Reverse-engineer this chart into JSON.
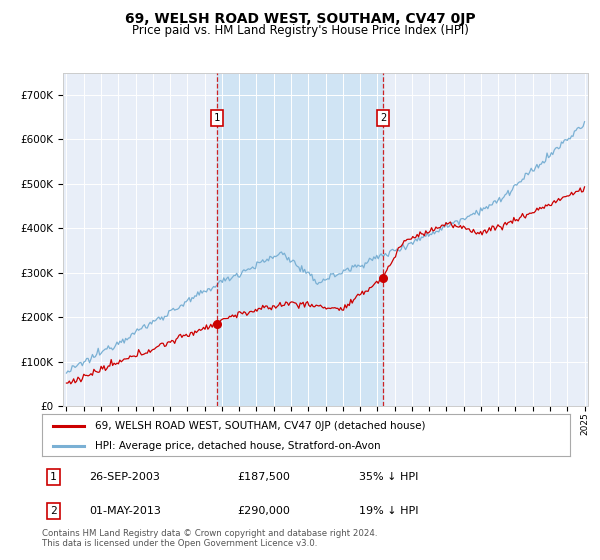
{
  "title": "69, WELSH ROAD WEST, SOUTHAM, CV47 0JP",
  "subtitle": "Price paid vs. HM Land Registry's House Price Index (HPI)",
  "legend_house": "69, WELSH ROAD WEST, SOUTHAM, CV47 0JP (detached house)",
  "legend_hpi": "HPI: Average price, detached house, Stratford-on-Avon",
  "transaction1_date": "26-SEP-2003",
  "transaction1_price": "£187,500",
  "transaction1_hpi": "35% ↓ HPI",
  "transaction2_date": "01-MAY-2013",
  "transaction2_price": "£290,000",
  "transaction2_hpi": "19% ↓ HPI",
  "footer": "Contains HM Land Registry data © Crown copyright and database right 2024.\nThis data is licensed under the Open Government Licence v3.0.",
  "house_color": "#cc0000",
  "hpi_color": "#7ab0d4",
  "vline_color": "#cc0000",
  "fill_color": "#d0e4f4",
  "background_color": "#ffffff",
  "plot_bg_color": "#e8eef8",
  "ylim": [
    0,
    750000
  ],
  "yticks": [
    0,
    100000,
    200000,
    300000,
    400000,
    500000,
    600000,
    700000
  ],
  "year_start": 1995,
  "year_end": 2025,
  "transaction1_year": 2003.73,
  "transaction2_year": 2013.33
}
